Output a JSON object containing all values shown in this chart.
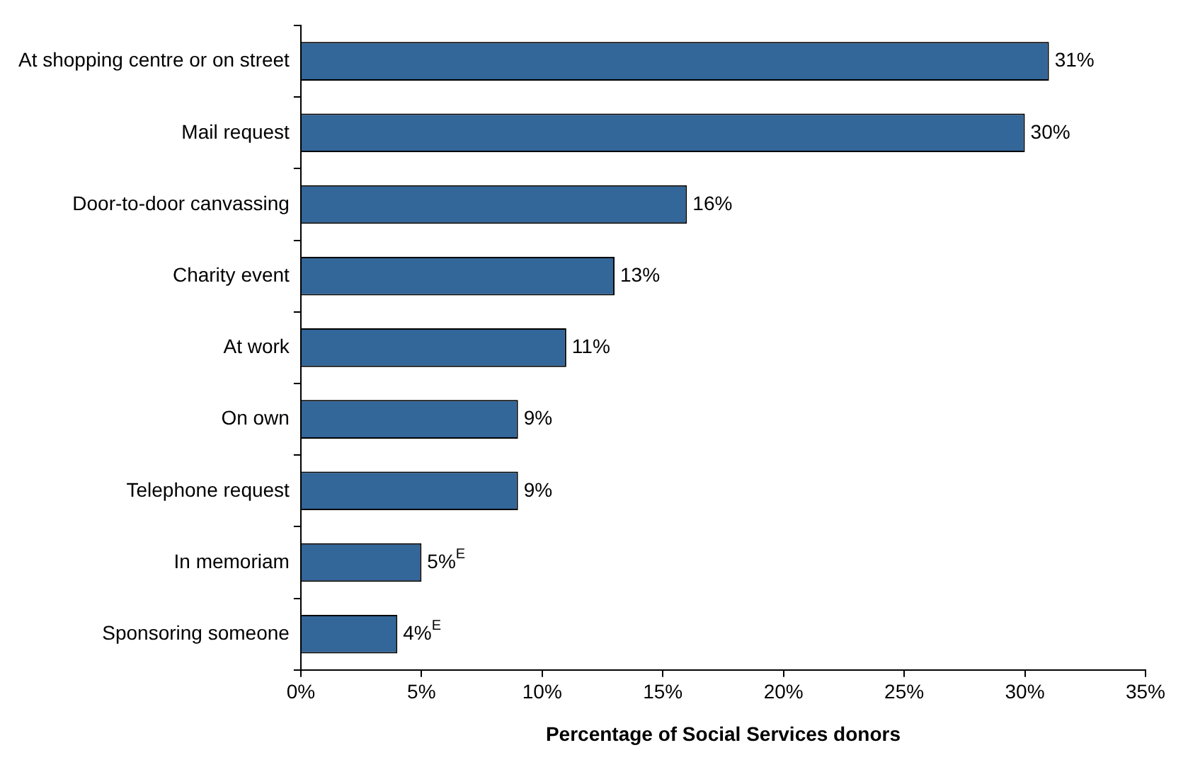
{
  "chart_data": {
    "type": "bar",
    "orientation": "horizontal",
    "categories": [
      "At shopping centre or on street",
      "Mail request",
      "Door-to-door canvassing",
      "Charity event",
      "At work",
      "On own",
      "Telephone request",
      "In memoriam",
      "Sponsoring someone"
    ],
    "values": [
      31,
      30,
      16,
      13,
      11,
      9,
      9,
      5,
      4
    ],
    "value_labels": [
      "31%",
      "30%",
      "16%",
      "13%",
      "11%",
      "9%",
      "9%",
      "5%$^{E}$",
      "4%$^{E}$"
    ],
    "color": "#336699",
    "xlabel": "Percentage of Social Services donors",
    "xlim": [
      0,
      35
    ],
    "xticks": [
      {
        "value": 0,
        "label": "0%"
      },
      {
        "value": 5,
        "label": "5%"
      },
      {
        "value": 10,
        "label": "10%"
      },
      {
        "value": 15,
        "label": "15%"
      },
      {
        "value": 20,
        "label": "20%"
      },
      {
        "value": 25,
        "label": "25%"
      },
      {
        "value": 30,
        "label": "30%"
      },
      {
        "value": 35,
        "label": "35%"
      }
    ],
    "grid": false,
    "legend": false
  }
}
